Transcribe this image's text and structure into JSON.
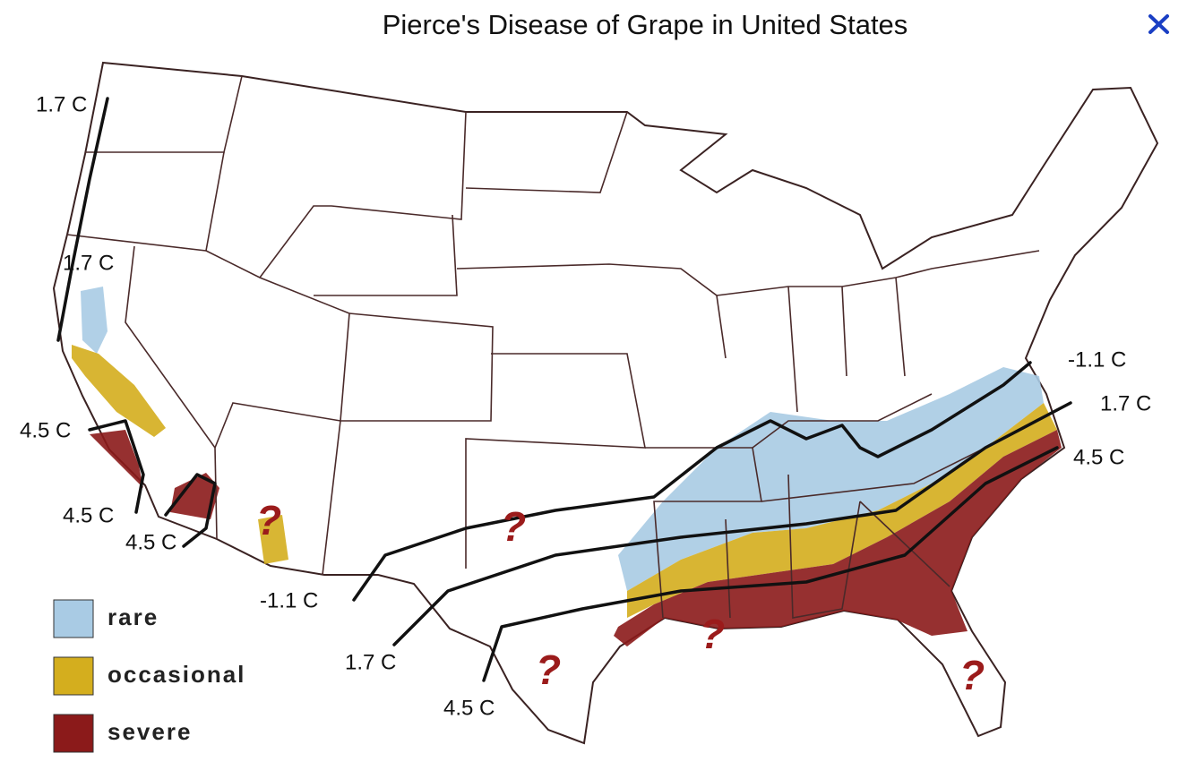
{
  "title": "Pierce's Disease of Grape in United States",
  "legend": [
    {
      "label": "rare",
      "color": "#a9cbe4"
    },
    {
      "label": "occasional",
      "color": "#d4ae1e"
    },
    {
      "label": "severe",
      "color": "#8b1a1a"
    }
  ],
  "isotherm_labels": [
    "1.7 C",
    "1.7 C",
    "4.5 C",
    "4.5 C",
    "4.5 C",
    "-1.1 C",
    "1.7 C",
    "4.5 C",
    "-1.1 C",
    "1.7 C",
    "4.5 C"
  ],
  "unknown_marks": [
    "?",
    "?",
    "?",
    "?",
    "?"
  ]
}
